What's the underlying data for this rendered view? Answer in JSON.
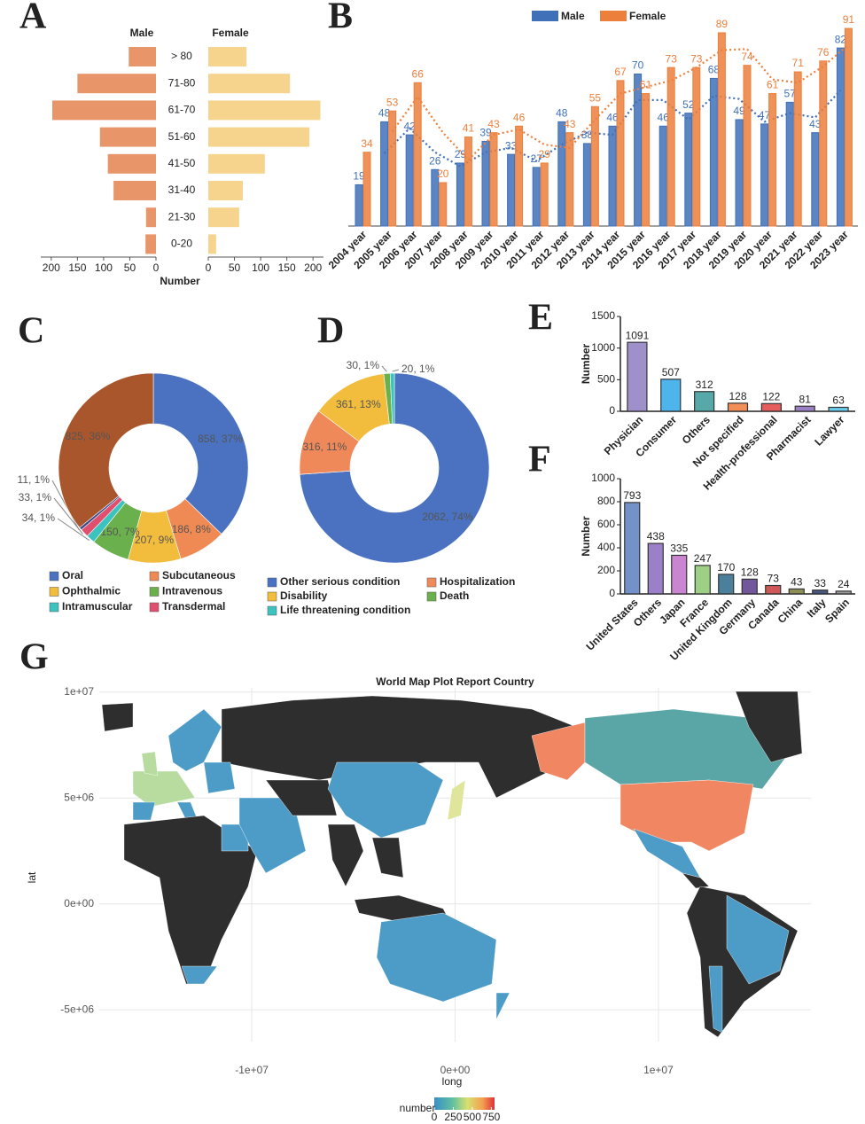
{
  "chart_data": [
    {
      "label": "A",
      "type": "pyramid",
      "categories": [
        "> 80",
        "71-80",
        "61-70",
        "51-60",
        "41-50",
        "31-40",
        "21-30",
        "0-20"
      ],
      "series": [
        {
          "name": "Male",
          "color": "#e8956a",
          "values": [
            52,
            150,
            198,
            107,
            92,
            81,
            19,
            20
          ]
        },
        {
          "name": "Female",
          "color": "#f7d48e",
          "values": [
            73,
            156,
            214,
            193,
            108,
            66,
            59,
            15
          ]
        }
      ],
      "xlabel": "Number",
      "xlim": [
        0,
        220
      ],
      "xticks": [
        0,
        50,
        100,
        150,
        200
      ]
    },
    {
      "label": "B",
      "type": "grouped_bar",
      "categories": [
        "2004 year",
        "2005 year",
        "2006 year",
        "2007 year",
        "2008 year",
        "2009 year",
        "2010 year",
        "2011 year",
        "2012 year",
        "2013 year",
        "2014 year",
        "2015 year",
        "2016 year",
        "2017 year",
        "2018 year",
        "2019 year",
        "2020 year",
        "2021 year",
        "2022 year",
        "2023 year"
      ],
      "series": [
        {
          "name": "Male",
          "color": "#3f70b8",
          "values": [
            19,
            48,
            42,
            26,
            29,
            39,
            33,
            27,
            48,
            38,
            46,
            70,
            46,
            52,
            68,
            49,
            47,
            57,
            43,
            82
          ]
        },
        {
          "name": "Female",
          "color": "#ec7f3c",
          "values": [
            34,
            53,
            66,
            20,
            41,
            43,
            46,
            29,
            43,
            55,
            67,
            61,
            73,
            73,
            89,
            74,
            61,
            71,
            76,
            91
          ]
        }
      ],
      "trend_period": 2
    },
    {
      "label": "C",
      "type": "donut",
      "categories": [
        "Oral",
        "Subcutaneous",
        "Ophthalmic",
        "Intravenous",
        "Intramuscular",
        "Transdermal",
        null,
        null
      ],
      "values": [
        858,
        186,
        207,
        150,
        34,
        33,
        11,
        825
      ],
      "value_labels": [
        "858, 37%",
        "186, 8%",
        "207, 9%",
        "150, 7%",
        "34, 1%",
        "33, 1%",
        "11, 1%",
        "825, 36%"
      ],
      "colors": [
        "#4a72c0",
        "#ef8a55",
        "#f2bd3c",
        "#6ab04c",
        "#3cc3c0",
        "#e0506e",
        "#3a4a8a",
        "#a9562d"
      ]
    },
    {
      "label": "D",
      "type": "donut",
      "categories": [
        "Other serious condition",
        "Hospitalization",
        "Disability",
        "Death",
        "Life threatening condition"
      ],
      "values": [
        2062,
        316,
        361,
        30,
        20
      ],
      "value_labels": [
        "2062, 74%",
        "316, 11%",
        "361, 13%",
        "30, 1%",
        "20, 1%"
      ],
      "colors": [
        "#4a72c0",
        "#f0895a",
        "#f2bd3c",
        "#6ab04c",
        "#3cc3c0"
      ]
    },
    {
      "label": "E",
      "type": "bar",
      "ylabel": "Number",
      "categories": [
        "Physician",
        "Consumer",
        "Others",
        "Not specified",
        "Health-professional",
        "Pharmacist",
        "Lawyer"
      ],
      "values": [
        1091,
        507,
        312,
        128,
        122,
        81,
        63
      ],
      "colors": [
        "#8e7cc3",
        "#2ea8e8",
        "#3a9a9a",
        "#f07a3a",
        "#e04040",
        "#8a6ab8",
        "#4ec3e8"
      ],
      "ylim": [
        0,
        1500
      ],
      "yticks": [
        0,
        500,
        1000,
        1500
      ]
    },
    {
      "label": "F",
      "type": "bar",
      "ylabel": "Number",
      "categories": [
        "United States",
        "Others",
        "Japan",
        "France",
        "United Kingdom",
        "Germany",
        "Canada",
        "China",
        "Italy",
        "Spain"
      ],
      "values": [
        793,
        438,
        335,
        247,
        170,
        128,
        73,
        43,
        33,
        24
      ],
      "colors": [
        "#5b7fc0",
        "#8a68c0",
        "#c070c8",
        "#8cc870",
        "#2a6a8a",
        "#5a3a8a",
        "#c83a3a",
        "#7a7a3a",
        "#2a3a6a",
        "#8a8a8a"
      ],
      "ylim": [
        0,
        1000
      ],
      "yticks": [
        0,
        200,
        400,
        600,
        800,
        1000
      ]
    },
    {
      "label": "G",
      "type": "map",
      "title": "World Map Plot Report Country",
      "xlabel": "long",
      "ylabel": "lat",
      "xlim": [
        -17500000,
        17500000
      ],
      "ylim": [
        -6500000,
        10200000
      ],
      "xticks": [
        {
          "value": -10000000,
          "label": "-1e+07"
        },
        {
          "value": 0,
          "label": "0e+00"
        },
        {
          "value": 10000000,
          "label": "1e+07"
        }
      ],
      "yticks": [
        {
          "value": 10000000,
          "label": "1e+07"
        },
        {
          "value": 5000000,
          "label": "5e+06"
        },
        {
          "value": 0,
          "label": "0e+00"
        },
        {
          "value": -5000000,
          "label": "-5e+06"
        }
      ],
      "colorbar_title": "number",
      "colorbar_lim": [
        0,
        793
      ],
      "colorbar_ticks": [
        0,
        250,
        500,
        750
      ]
    }
  ]
}
